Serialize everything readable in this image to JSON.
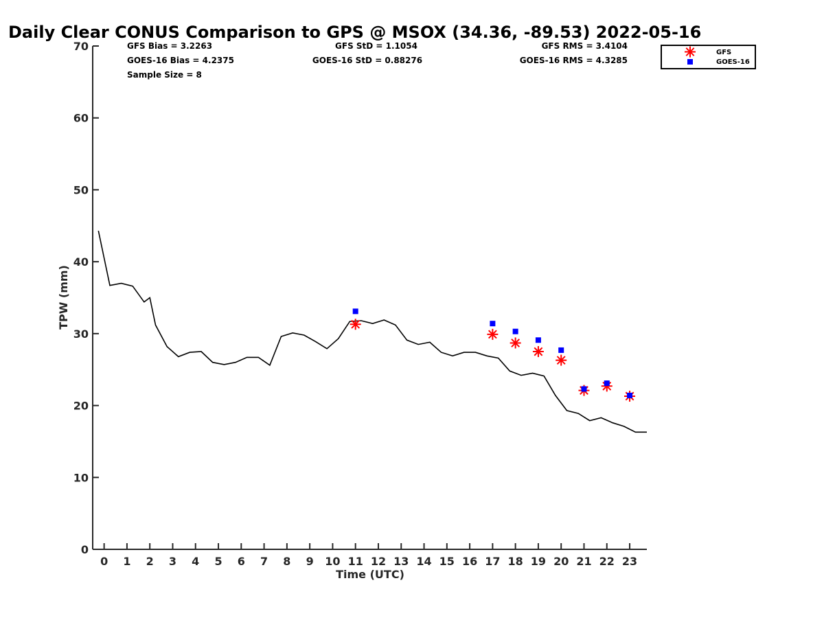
{
  "chart_data": {
    "type": "line",
    "title": "Daily Clear CONUS Comparison to GPS @ MSOX (34.36, -89.53) 2022-05-16",
    "xlabel": "Time (UTC)",
    "ylabel": "TPW (mm)",
    "xlim": [
      -0.5,
      23.75
    ],
    "ylim": [
      0,
      70
    ],
    "xticks": [
      0,
      1,
      2,
      3,
      4,
      5,
      6,
      7,
      8,
      9,
      10,
      11,
      12,
      13,
      14,
      15,
      16,
      17,
      18,
      19,
      20,
      21,
      22,
      23
    ],
    "yticks": [
      0,
      10,
      20,
      30,
      40,
      50,
      60,
      70
    ],
    "stats": {
      "gfs_bias": "GFS Bias = 3.2263",
      "goes_bias": "GOES-16 Bias = 4.2375",
      "sample_size": "Sample Size = 8",
      "gfs_std": "GFS StD = 1.1054",
      "goes_std": "GOES-16 StD = 0.88276",
      "gfs_rms": "GFS RMS = 3.4104",
      "goes_rms": "GOES-16 RMS = 4.3285"
    },
    "legend": [
      "GFS",
      "GOES-16"
    ],
    "legend_position": "top-right",
    "series": [
      {
        "name": "GPS",
        "style": "line",
        "color": "#000000",
        "x": [
          -0.25,
          0.25,
          0.75,
          1.25,
          1.75,
          2.0,
          2.25,
          2.75,
          3.25,
          3.75,
          4.25,
          4.75,
          5.25,
          5.75,
          6.25,
          6.75,
          7.25,
          7.75,
          8.25,
          8.75,
          9.25,
          9.75,
          10.25,
          10.75,
          11.25,
          11.75,
          12.25,
          12.75,
          13.25,
          13.75,
          14.25,
          14.75,
          15.25,
          15.75,
          16.25,
          16.75,
          17.25,
          17.75,
          18.25,
          18.75,
          19.25,
          19.75,
          20.25,
          20.75,
          21.25,
          21.75,
          22.25,
          22.75,
          23.25,
          23.75
        ],
        "y": [
          44.3,
          36.7,
          37.0,
          36.6,
          34.4,
          35.0,
          31.2,
          28.2,
          26.8,
          27.4,
          27.5,
          26.0,
          25.7,
          26.0,
          26.7,
          26.7,
          25.6,
          29.6,
          30.1,
          29.8,
          28.9,
          27.9,
          29.3,
          31.7,
          31.8,
          31.4,
          31.9,
          31.2,
          29.1,
          28.5,
          28.8,
          27.4,
          26.9,
          27.4,
          27.4,
          26.9,
          26.6,
          24.8,
          24.2,
          24.5,
          24.1,
          21.4,
          19.3,
          18.9,
          17.9,
          18.3,
          17.6,
          17.1,
          16.3,
          16.3
        ]
      },
      {
        "name": "GFS",
        "style": "marker-star",
        "color": "#ff0000",
        "x": [
          11,
          17,
          18,
          19,
          20,
          21,
          22,
          23
        ],
        "y": [
          31.3,
          29.9,
          28.7,
          27.5,
          26.3,
          22.1,
          22.7,
          21.3
        ]
      },
      {
        "name": "GOES-16",
        "style": "marker-square",
        "color": "#0000ff",
        "x": [
          11,
          17,
          18,
          19,
          20,
          21,
          22,
          23
        ],
        "y": [
          33.1,
          31.4,
          30.3,
          29.1,
          27.7,
          22.3,
          23.1,
          21.4
        ]
      }
    ]
  }
}
